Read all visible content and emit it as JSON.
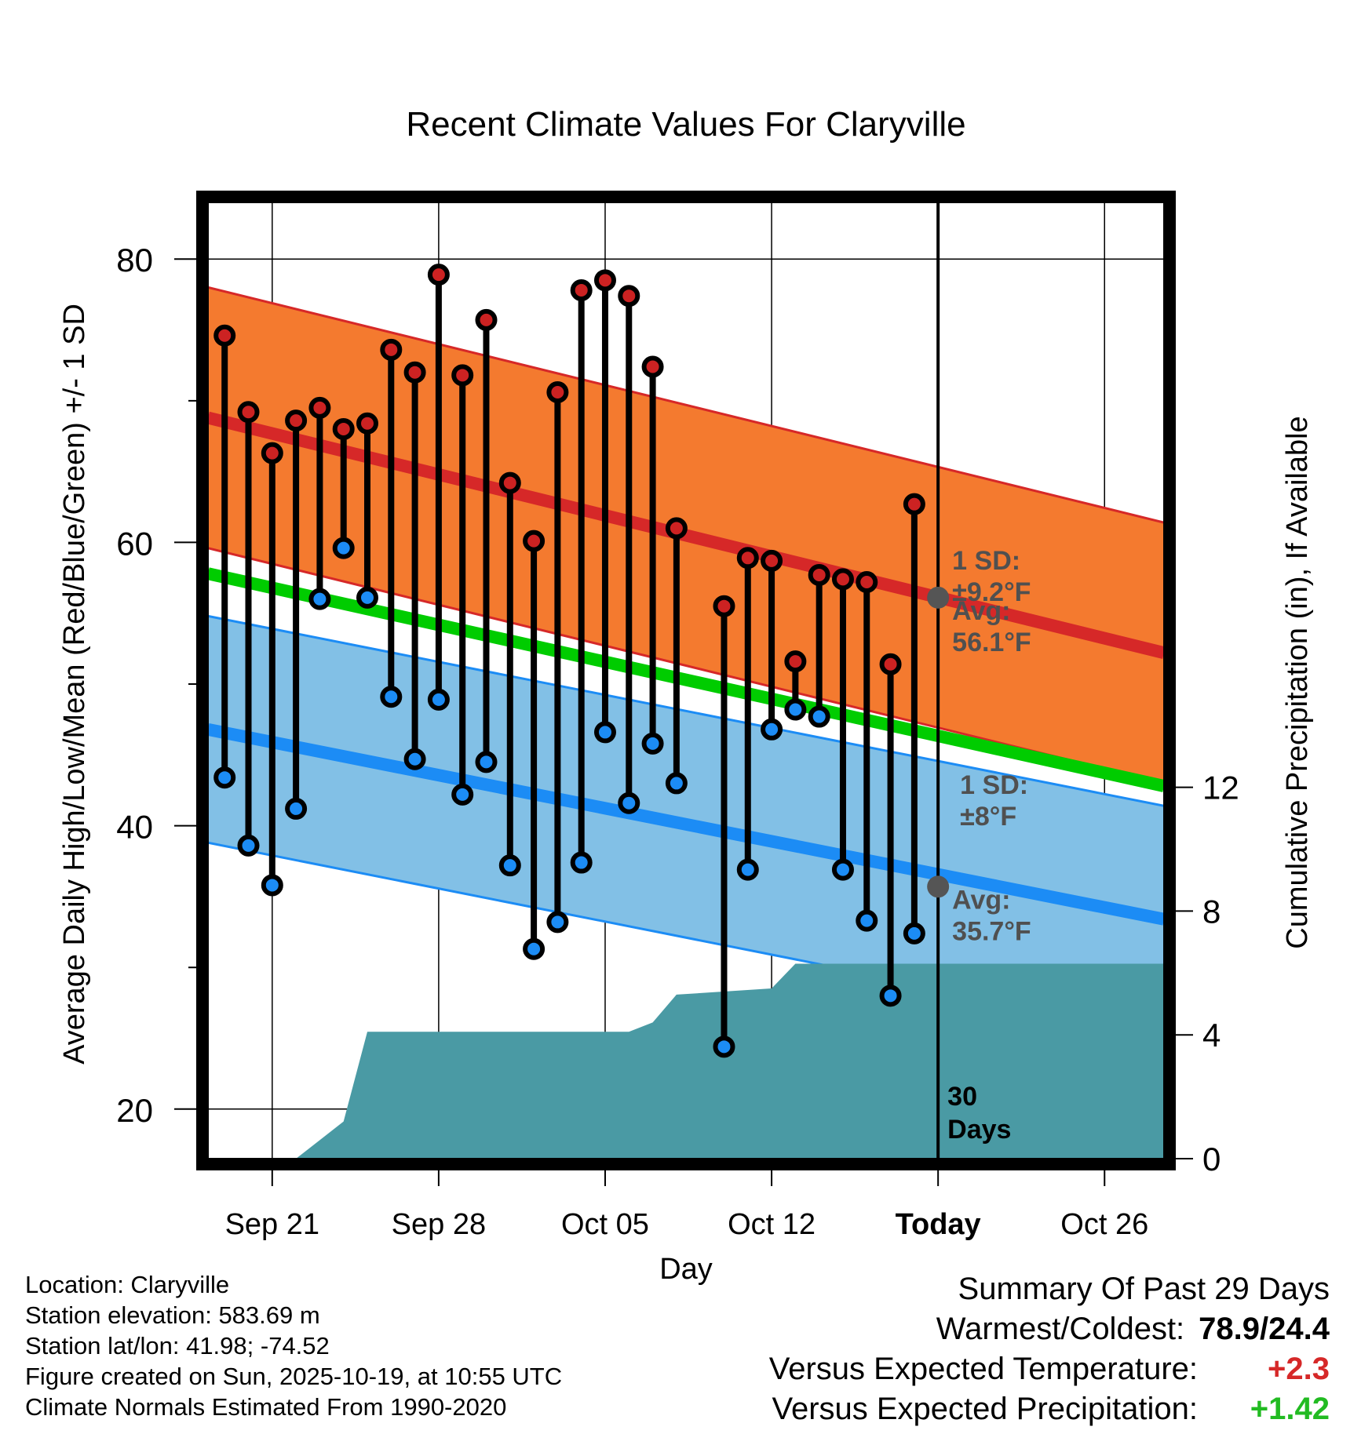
{
  "colors": {
    "high_band": "#f47a2f",
    "high_line": "#d62828",
    "low_band": "#82c0e6",
    "low_line": "#1c8cf5",
    "mean_line": "#00cc00",
    "precip": "#4a9aa4",
    "high_marker": "#cc2222",
    "low_marker": "#1c8cf5",
    "annotation": "#505050",
    "positive_temp": "#d62828",
    "positive_precip": "#22bb22"
  },
  "chart_data": {
    "type": "line",
    "title": "Recent Climate Values For Claryville",
    "xlabel": "Day",
    "ylabel_left": "Average Daily High/Low/Mean (Red/Blue/Green) +/- 1 SD",
    "ylabel_right": "Cumulative Precipitation (in), If Available",
    "x_tick_labels": [
      "Sep 21",
      "Sep 28",
      "Oct 05",
      "Oct 12",
      "Today",
      "Oct 26"
    ],
    "x_tick_days": [
      2,
      9,
      16,
      23,
      30,
      37
    ],
    "xlim": [
      -0.7,
      39.5
    ],
    "ylim_left": [
      16.5,
      84
    ],
    "yticks_left": [
      20,
      40,
      60,
      80
    ],
    "ylim_right": [
      0,
      30.9
    ],
    "yticks_right": [
      0,
      4,
      8,
      12
    ],
    "grid": true,
    "today_day": 30,
    "days": [
      0,
      1,
      2,
      3,
      4,
      5,
      6,
      7,
      8,
      9,
      10,
      11,
      12,
      13,
      14,
      15,
      16,
      17,
      18,
      19,
      21,
      22,
      23,
      24,
      25,
      26,
      27,
      28,
      29
    ],
    "highs": [
      74.6,
      69.2,
      66.3,
      68.6,
      69.5,
      68.0,
      68.4,
      73.6,
      72.0,
      78.9,
      71.8,
      75.7,
      64.2,
      60.1,
      70.6,
      77.8,
      78.5,
      77.4,
      72.4,
      61.0,
      55.5,
      58.9,
      58.7,
      51.6,
      57.7,
      57.4,
      57.2,
      51.4,
      62.7
    ],
    "lows": [
      43.4,
      38.6,
      35.8,
      41.2,
      56.0,
      59.6,
      56.1,
      49.1,
      44.7,
      48.9,
      42.2,
      44.5,
      37.2,
      31.3,
      33.2,
      37.4,
      46.6,
      41.6,
      45.8,
      43.0,
      24.4,
      36.9,
      46.8,
      48.2,
      47.7,
      36.9,
      33.3,
      28.0,
      32.4
    ],
    "normal_high": {
      "start": 68.8,
      "end": 52.2,
      "sd": 9.2
    },
    "normal_low": {
      "start": 46.8,
      "end": 33.4,
      "sd": 8.0
    },
    "normal_mean": {
      "start": 57.8,
      "end": 42.8
    },
    "precip_x": [
      3,
      4,
      5,
      6,
      17,
      18,
      19,
      23,
      24,
      40
    ],
    "precip_y": [
      0,
      0.6,
      1.2,
      4.1,
      4.1,
      4.4,
      5.3,
      5.5,
      6.3,
      6.3
    ],
    "annotations": {
      "high_sd_label": "1 SD:",
      "high_sd_value": "±9.2°F",
      "high_avg_label": "Avg:",
      "high_avg_value": "56.1°F",
      "high_avg_temp": 56.1,
      "low_sd_label": "1 SD:",
      "low_sd_value": "±8°F",
      "low_avg_label": "Avg:",
      "low_avg_value": "35.7°F",
      "low_avg_temp": 35.7,
      "window_number": "30",
      "window_unit": "Days"
    }
  },
  "footer": {
    "location": "Location: Claryville",
    "elevation": "Station elevation: 583.69 m",
    "latlon": "Station lat/lon: 41.98; -74.52",
    "created": "Figure created on Sun, 2025-10-19, at 10:55 UTC",
    "normals": "Climate Normals Estimated From 1990-2020"
  },
  "summary": {
    "title": "Summary Of Past 29 Days",
    "warm_cold_label": "Warmest/Coldest:",
    "warm_cold_value": "78.9/24.4",
    "temp_label": "Versus Expected Temperature:",
    "temp_value": "+2.3",
    "precip_label": "Versus Expected Precipitation:",
    "precip_value": "+1.42"
  }
}
